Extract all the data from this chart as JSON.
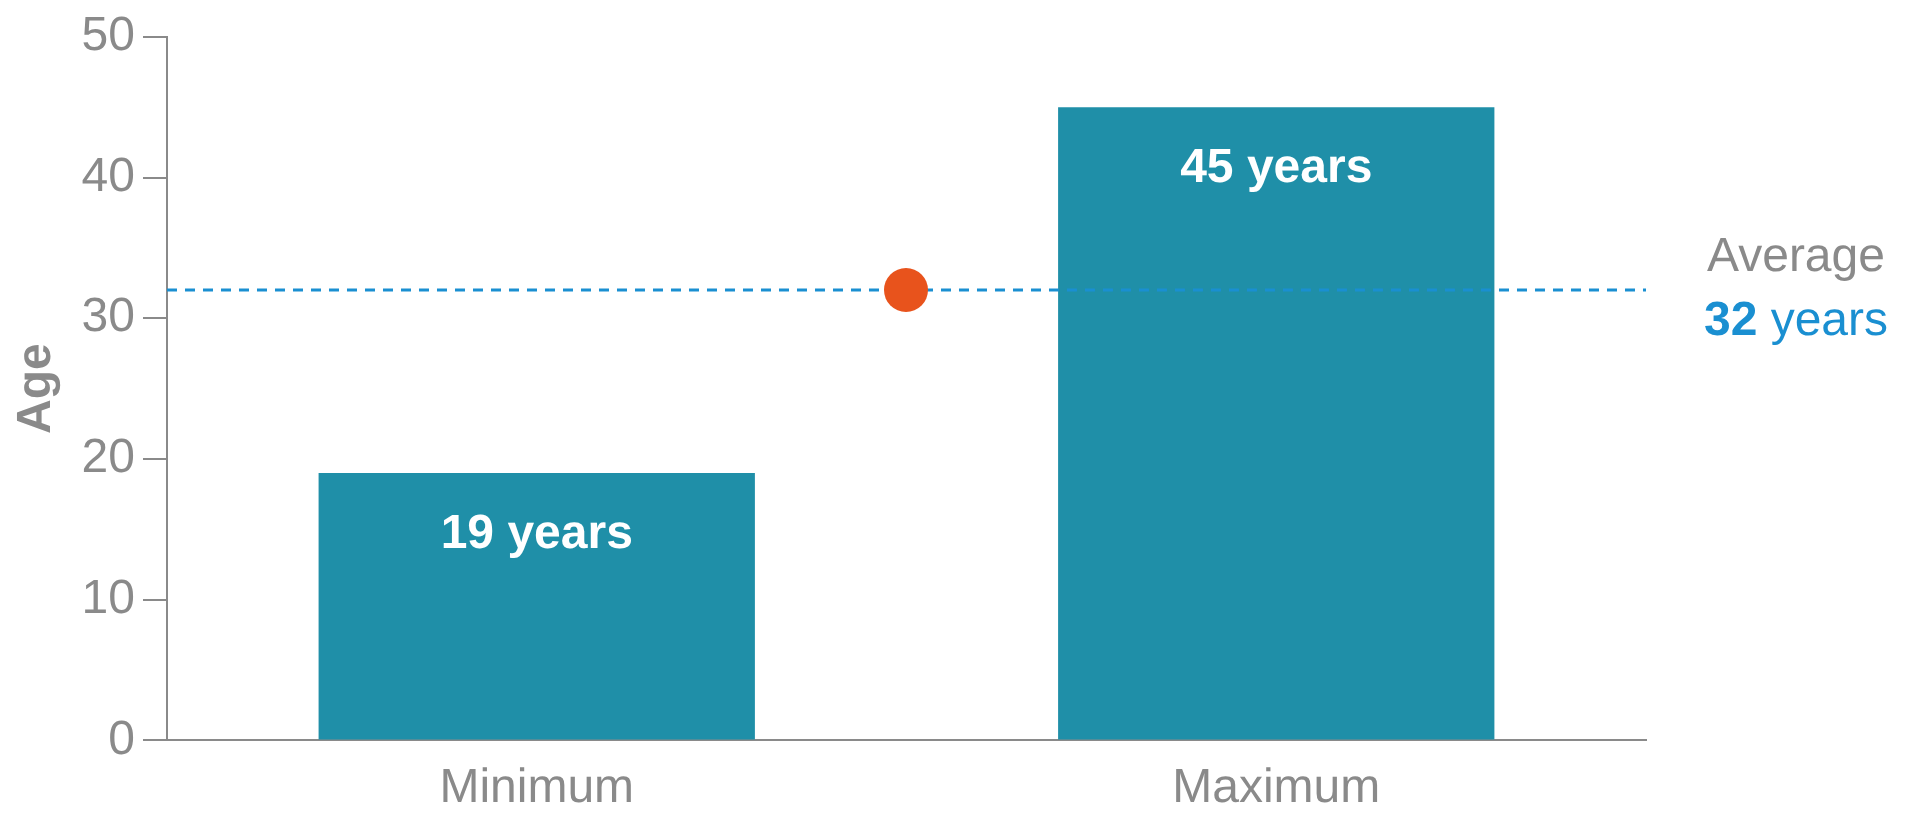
{
  "chart_data": {
    "type": "bar",
    "ylabel": "Age",
    "categories": [
      "Minimum",
      "Maximum"
    ],
    "values": [
      19,
      45
    ],
    "value_labels": [
      "19 years",
      "45 years"
    ],
    "color": "#1f8fa8",
    "ylim": [
      0,
      50
    ],
    "yticks": [
      0,
      10,
      20,
      30,
      40,
      50
    ],
    "grid": false,
    "legend": false,
    "ref_lines": [
      {
        "axis": "y",
        "value": 32,
        "label": "Average\n32 years",
        "color": "#1a8fd1",
        "line_style": "dashed"
      }
    ]
  }
}
